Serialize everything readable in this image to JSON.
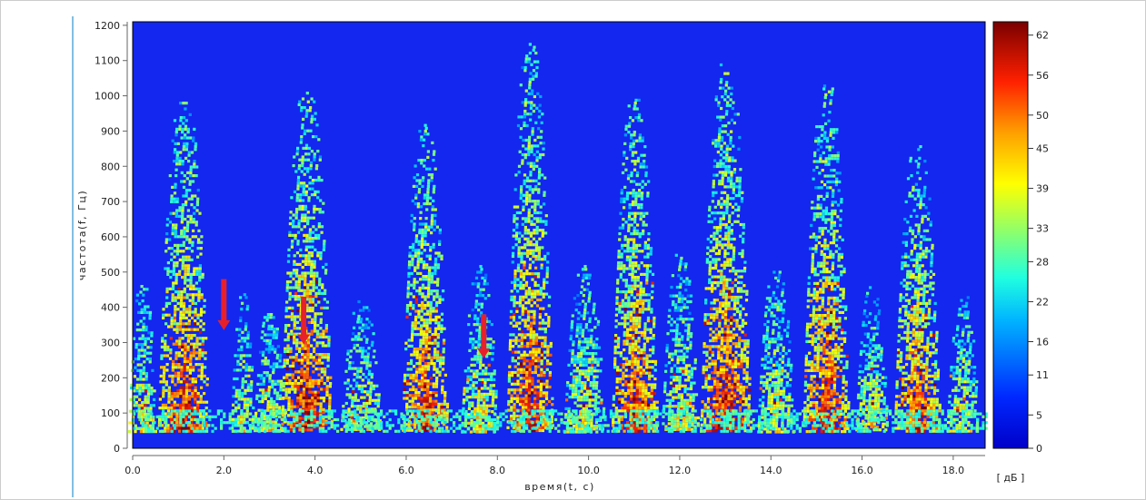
{
  "chart_data": {
    "type": "heatmap",
    "title": "",
    "xlabel": "время(t, с)",
    "ylabel": "частота(f, Гц)",
    "xlim": [
      0,
      18.7
    ],
    "ylim": [
      0,
      1210
    ],
    "x_ticks": [
      0,
      2,
      4,
      6,
      8,
      10,
      12,
      14,
      16,
      18
    ],
    "x_tick_labels": [
      "0.0",
      "2.0",
      "4.0",
      "6.0",
      "8.0",
      "10.0",
      "12.0",
      "14.0",
      "16.0",
      "18.0"
    ],
    "y_ticks": [
      0,
      100,
      200,
      300,
      400,
      500,
      600,
      700,
      800,
      900,
      1000,
      1100,
      1200
    ],
    "y_tick_labels": [
      "0",
      "100",
      "200",
      "300",
      "400",
      "500",
      "600",
      "700",
      "800",
      "900",
      "1000",
      "1100",
      "1200"
    ],
    "colorbar": {
      "label": "[ дБ ]",
      "range": [
        0,
        64
      ],
      "ticks": [
        0,
        5,
        11,
        16,
        22,
        28,
        33,
        39,
        45,
        50,
        56,
        62
      ],
      "tick_labels": [
        "0",
        "5",
        "11",
        "16",
        "22",
        "28",
        "33",
        "39",
        "45",
        "50",
        "56",
        "62"
      ]
    },
    "bursts": [
      {
        "t": 0.2,
        "top": 480,
        "width": 0.3,
        "intensity": 0.55
      },
      {
        "t": 1.1,
        "top": 1000,
        "width": 0.55,
        "intensity": 0.92
      },
      {
        "t": 2.4,
        "top": 440,
        "width": 0.25,
        "intensity": 0.5
      },
      {
        "t": 3.0,
        "top": 400,
        "width": 0.35,
        "intensity": 0.55
      },
      {
        "t": 3.8,
        "top": 1020,
        "width": 0.55,
        "intensity": 0.95
      },
      {
        "t": 5.0,
        "top": 420,
        "width": 0.45,
        "intensity": 0.55
      },
      {
        "t": 6.4,
        "top": 920,
        "width": 0.5,
        "intensity": 0.88
      },
      {
        "t": 7.6,
        "top": 520,
        "width": 0.4,
        "intensity": 0.55
      },
      {
        "t": 8.7,
        "top": 1150,
        "width": 0.5,
        "intensity": 0.9
      },
      {
        "t": 9.9,
        "top": 520,
        "width": 0.45,
        "intensity": 0.55
      },
      {
        "t": 11.0,
        "top": 1000,
        "width": 0.5,
        "intensity": 0.88
      },
      {
        "t": 12.0,
        "top": 560,
        "width": 0.4,
        "intensity": 0.55
      },
      {
        "t": 13.0,
        "top": 1100,
        "width": 0.55,
        "intensity": 0.95
      },
      {
        "t": 14.1,
        "top": 520,
        "width": 0.4,
        "intensity": 0.55
      },
      {
        "t": 15.2,
        "top": 1040,
        "width": 0.5,
        "intensity": 0.9
      },
      {
        "t": 16.2,
        "top": 460,
        "width": 0.35,
        "intensity": 0.6
      },
      {
        "t": 17.2,
        "top": 860,
        "width": 0.5,
        "intensity": 0.88
      },
      {
        "t": 18.2,
        "top": 440,
        "width": 0.35,
        "intensity": 0.55
      }
    ],
    "annotations": [
      {
        "type": "arrow",
        "color": "#e8202a",
        "t": 2.0,
        "f_start": 480,
        "f_end": 340
      },
      {
        "type": "arrow",
        "color": "#e8202a",
        "t": 3.75,
        "f_start": 430,
        "f_end": 300
      },
      {
        "type": "arrow",
        "color": "#e8202a",
        "t": 7.7,
        "f_start": 380,
        "f_end": 260
      }
    ],
    "colors": {
      "background": "#1427ee",
      "arrow": "#e8202a",
      "left_rule": "#5aa8d8",
      "frame_border": "#cccccc"
    }
  }
}
